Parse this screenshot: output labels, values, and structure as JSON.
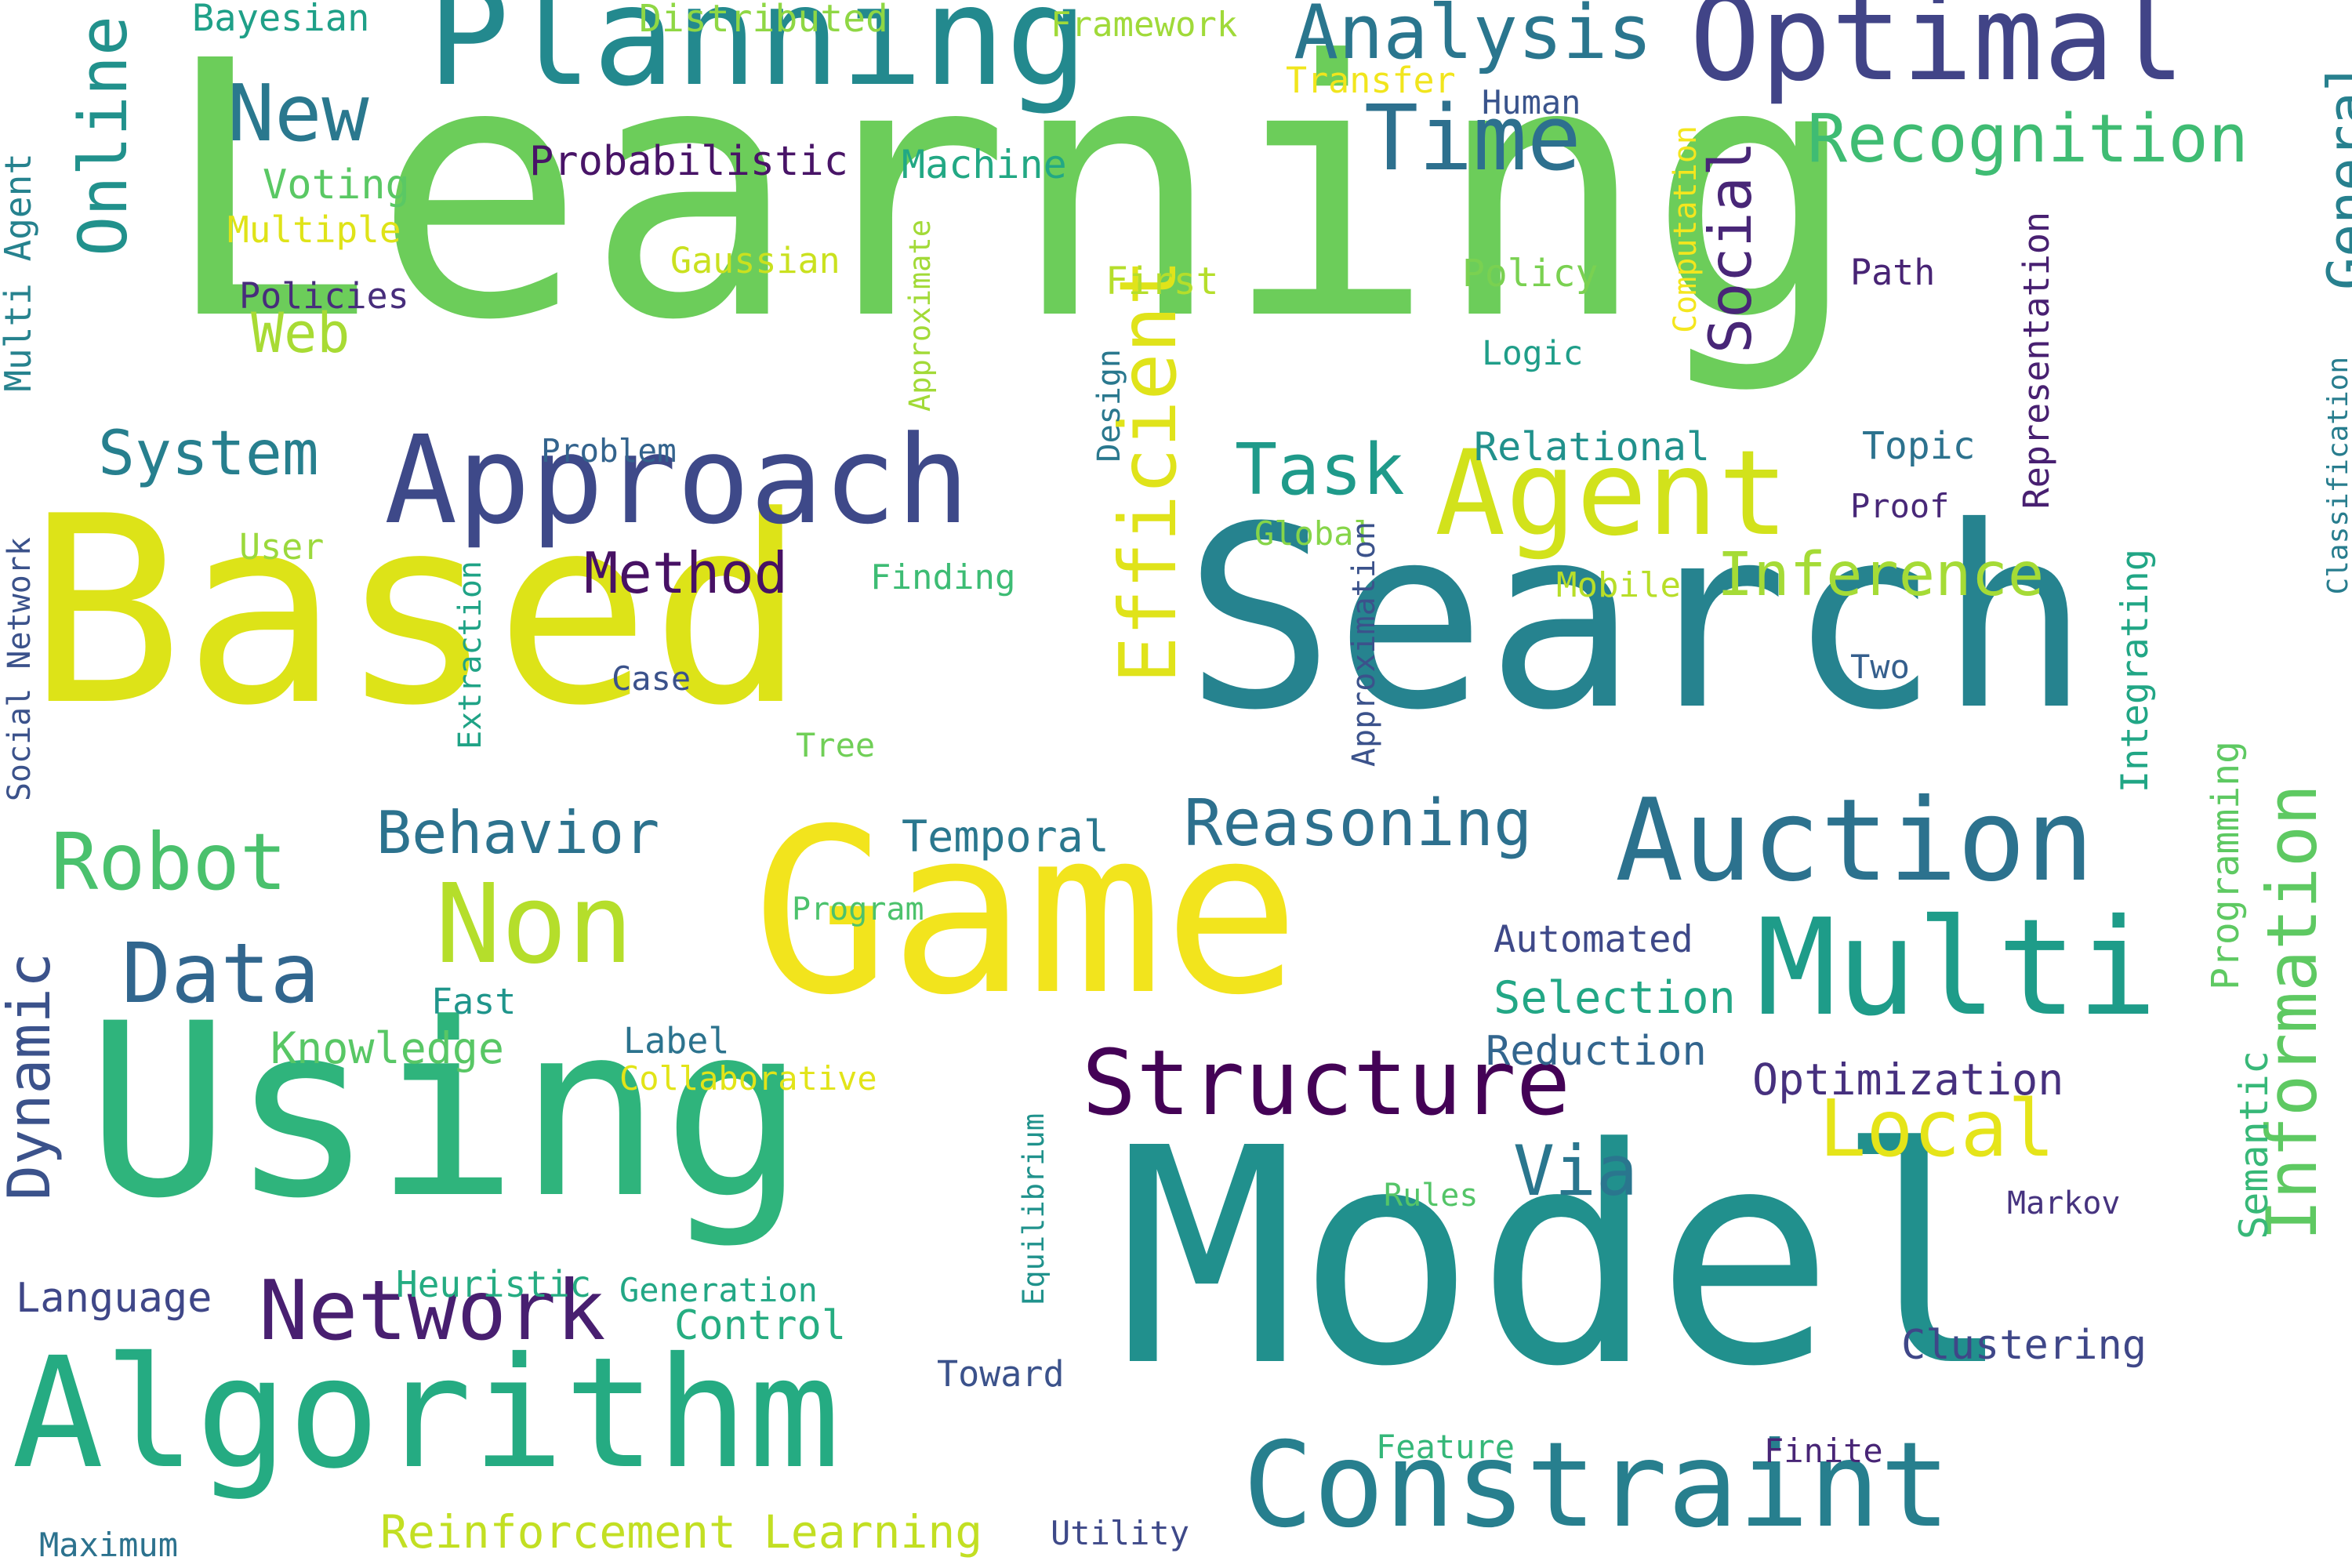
{
  "words": [
    {
      "text": "Learning",
      "color": "#6ccd5a",
      "orientation": "horizontal"
    },
    {
      "text": "Model",
      "color": "#21908d",
      "orientation": "horizontal"
    },
    {
      "text": "Search",
      "color": "#26838f",
      "orientation": "horizontal"
    },
    {
      "text": "Based",
      "color": "#dde318",
      "orientation": "horizontal"
    },
    {
      "text": "Using",
      "color": "#2fb47c",
      "orientation": "horizontal"
    },
    {
      "text": "Game",
      "color": "#f2e41d",
      "orientation": "horizontal"
    },
    {
      "text": "Planning",
      "color": "#23898e",
      "orientation": "horizontal"
    },
    {
      "text": "Algorithm",
      "color": "#25ab82",
      "orientation": "horizontal"
    },
    {
      "text": "Optimal",
      "color": "#414487",
      "orientation": "horizontal"
    },
    {
      "text": "Constraint",
      "color": "#277f8e",
      "orientation": "horizontal"
    },
    {
      "text": "Multi",
      "color": "#1e9c89",
      "orientation": "horizontal"
    },
    {
      "text": "Auction",
      "color": "#2c728e",
      "orientation": "horizontal"
    },
    {
      "text": "Approach",
      "color": "#3e4989",
      "orientation": "horizontal"
    },
    {
      "text": "Agent",
      "color": "#d2e21b",
      "orientation": "horizontal"
    },
    {
      "text": "Efficient",
      "color": "#e0e31a",
      "orientation": "vertical"
    },
    {
      "text": "Information",
      "color": "#5ec962",
      "orientation": "vertical"
    },
    {
      "text": "Structure",
      "color": "#440256",
      "orientation": "horizontal"
    },
    {
      "text": "Non",
      "color": "#b5de2b",
      "orientation": "horizontal"
    },
    {
      "text": "Analysis",
      "color": "#2a768e",
      "orientation": "horizontal"
    },
    {
      "text": "Network",
      "color": "#481f70",
      "orientation": "horizontal"
    },
    {
      "text": "Data",
      "color": "#31668e",
      "orientation": "horizontal"
    },
    {
      "text": "Recognition",
      "color": "#3fbc73",
      "orientation": "horizontal"
    },
    {
      "text": "Time",
      "color": "#2d708e",
      "orientation": "horizontal"
    },
    {
      "text": "Online",
      "color": "#21918c",
      "orientation": "vertical"
    },
    {
      "text": "Robot",
      "color": "#4ac16d",
      "orientation": "horizontal"
    },
    {
      "text": "Local",
      "color": "#e5e419",
      "orientation": "horizontal"
    },
    {
      "text": "Reasoning",
      "color": "#2d708e",
      "orientation": "horizontal"
    },
    {
      "text": "New",
      "color": "#2a788e",
      "orientation": "horizontal"
    },
    {
      "text": "Dynamic",
      "color": "#3b528b",
      "orientation": "vertical"
    },
    {
      "text": "Social",
      "color": "#482677",
      "orientation": "vertical"
    },
    {
      "text": "Inference",
      "color": "#a5db36",
      "orientation": "horizontal"
    },
    {
      "text": "Task",
      "color": "#1f9a8a",
      "orientation": "horizontal"
    },
    {
      "text": "Behavior",
      "color": "#2c728e",
      "orientation": "horizontal"
    },
    {
      "text": "General",
      "color": "#27808e",
      "orientation": "vertical"
    },
    {
      "text": "Method",
      "color": "#471164",
      "orientation": "horizontal"
    },
    {
      "text": "System",
      "color": "#277f8e",
      "orientation": "horizontal"
    },
    {
      "text": "Via",
      "color": "#2a768e",
      "orientation": "horizontal"
    },
    {
      "text": "Web",
      "color": "#a8db34",
      "orientation": "horizontal"
    },
    {
      "text": "Reinforcement Learning",
      "color": "#c2df23",
      "orientation": "horizontal"
    },
    {
      "text": "Optimization",
      "color": "#46307e",
      "orientation": "horizontal"
    },
    {
      "text": "Selection",
      "color": "#22a785",
      "orientation": "horizontal"
    },
    {
      "text": "Control",
      "color": "#26ad81",
      "orientation": "horizontal"
    },
    {
      "text": "Temporal",
      "color": "#2a778e",
      "orientation": "horizontal"
    },
    {
      "text": "Reduction",
      "color": "#32658e",
      "orientation": "horizontal"
    },
    {
      "text": "Clustering",
      "color": "#3f4788",
      "orientation": "horizontal"
    },
    {
      "text": "Knowledge",
      "color": "#58c765",
      "orientation": "horizontal"
    },
    {
      "text": "Language",
      "color": "#3f4788",
      "orientation": "horizontal"
    },
    {
      "text": "Probabilistic",
      "color": "#481467",
      "orientation": "horizontal"
    },
    {
      "text": "Machine",
      "color": "#22a884",
      "orientation": "horizontal"
    },
    {
      "text": "Heuristic",
      "color": "#25ac82",
      "orientation": "horizontal"
    },
    {
      "text": "Automated",
      "color": "#3e4989",
      "orientation": "horizontal"
    },
    {
      "text": "Relational",
      "color": "#21918c",
      "orientation": "horizontal"
    },
    {
      "text": "Programming",
      "color": "#5ec962",
      "orientation": "vertical"
    },
    {
      "text": "Semantic",
      "color": "#37b878",
      "orientation": "vertical"
    },
    {
      "text": "Voting",
      "color": "#5ac864",
      "orientation": "horizontal"
    },
    {
      "text": "Bayesian",
      "color": "#1fa088",
      "orientation": "horizontal"
    },
    {
      "text": "Distributed",
      "color": "#8fd744",
      "orientation": "horizontal"
    },
    {
      "text": "Framework",
      "color": "#a0da39",
      "orientation": "horizontal"
    },
    {
      "text": "Transfer",
      "color": "#f1e51d",
      "orientation": "horizontal"
    },
    {
      "text": "Human",
      "color": "#3a548c",
      "orientation": "horizontal"
    },
    {
      "text": "Multiple",
      "color": "#dfe318",
      "orientation": "horizontal"
    },
    {
      "text": "Gaussian",
      "color": "#cae11f",
      "orientation": "horizontal"
    },
    {
      "text": "Policies",
      "color": "#472d7b",
      "orientation": "horizontal"
    },
    {
      "text": "First",
      "color": "#b5de2b",
      "orientation": "horizontal"
    },
    {
      "text": "Policy",
      "color": "#7ad151",
      "orientation": "horizontal"
    },
    {
      "text": "Path",
      "color": "#482475",
      "orientation": "horizontal"
    },
    {
      "text": "Logic",
      "color": "#1f9e89",
      "orientation": "horizontal"
    },
    {
      "text": "Multi Agent",
      "color": "#26828e",
      "orientation": "vertical"
    },
    {
      "text": "Problem",
      "color": "#33638d",
      "orientation": "horizontal"
    },
    {
      "text": "Topic",
      "color": "#2c728e",
      "orientation": "horizontal"
    },
    {
      "text": "Proof",
      "color": "#482878",
      "orientation": "horizontal"
    },
    {
      "text": "User",
      "color": "#9bd93c",
      "orientation": "horizontal"
    },
    {
      "text": "Global",
      "color": "#86d549",
      "orientation": "horizontal"
    },
    {
      "text": "Finding",
      "color": "#3dbc74",
      "orientation": "horizontal"
    },
    {
      "text": "Mobile",
      "color": "#b8de29",
      "orientation": "horizontal"
    },
    {
      "text": "Case",
      "color": "#3b528b",
      "orientation": "horizontal"
    },
    {
      "text": "Tree",
      "color": "#70cf57",
      "orientation": "horizontal"
    },
    {
      "text": "Two",
      "color": "#355f8d",
      "orientation": "horizontal"
    },
    {
      "text": "Program",
      "color": "#4cc26c",
      "orientation": "horizontal"
    },
    {
      "text": "Fast",
      "color": "#1f958b",
      "orientation": "horizontal"
    },
    {
      "text": "Label",
      "color": "#2c738e",
      "orientation": "horizontal"
    },
    {
      "text": "Collaborative",
      "color": "#e2e418",
      "orientation": "horizontal"
    },
    {
      "text": "Rules",
      "color": "#54c568",
      "orientation": "horizontal"
    },
    {
      "text": "Markov",
      "color": "#46337f",
      "orientation": "horizontal"
    },
    {
      "text": "Generation",
      "color": "#22a785",
      "orientation": "horizontal"
    },
    {
      "text": "Toward",
      "color": "#3b528b",
      "orientation": "horizontal"
    },
    {
      "text": "Feature",
      "color": "#35b779",
      "orientation": "horizontal"
    },
    {
      "text": "Finite",
      "color": "#482576",
      "orientation": "horizontal"
    },
    {
      "text": "Maximum",
      "color": "#2c728e",
      "orientation": "horizontal"
    },
    {
      "text": "Utility",
      "color": "#3e4989",
      "orientation": "horizontal"
    },
    {
      "text": "Social Network",
      "color": "#3b528b",
      "orientation": "vertical"
    },
    {
      "text": "Extraction",
      "color": "#20a386",
      "orientation": "vertical"
    },
    {
      "text": "Approximate",
      "color": "#a2da37",
      "orientation": "vertical"
    },
    {
      "text": "Design",
      "color": "#2a788e",
      "orientation": "vertical"
    },
    {
      "text": "Approximation",
      "color": "#3b528b",
      "orientation": "vertical"
    },
    {
      "text": "Computation",
      "color": "#f4e61e",
      "orientation": "vertical"
    },
    {
      "text": "Representation",
      "color": "#482071",
      "orientation": "vertical"
    },
    {
      "text": "Classification",
      "color": "#287d8e",
      "orientation": "vertical"
    },
    {
      "text": "Integrating",
      "color": "#21a685",
      "orientation": "vertical"
    },
    {
      "text": "Equilibrium",
      "color": "#20928c",
      "orientation": "vertical"
    }
  ]
}
